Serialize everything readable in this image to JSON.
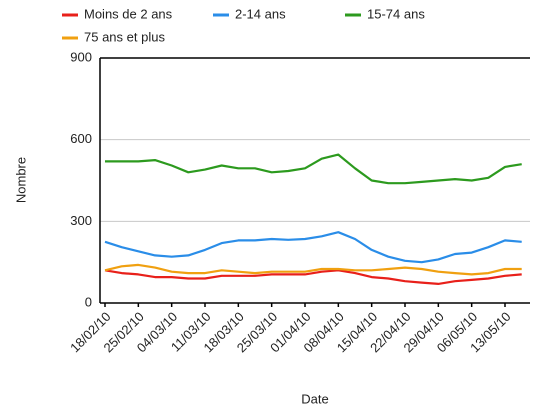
{
  "chart_data": {
    "type": "line",
    "x_label": "Date",
    "y_label": "Nombre",
    "categories": [
      "18/02/10",
      null,
      "25/02/10",
      null,
      "04/03/10",
      null,
      "11/03/10",
      null,
      "18/03/10",
      null,
      "25/03/10",
      null,
      "01/04/10",
      null,
      "08/04/10",
      null,
      "15/04/10",
      null,
      "22/04/10",
      null,
      "29/04/10",
      null,
      "06/05/10",
      null,
      "13/05/10",
      null
    ],
    "series": [
      {
        "name": "Moins de 2 ans",
        "color": "#e8201a",
        "values": [
          120,
          110,
          105,
          95,
          95,
          90,
          90,
          100,
          100,
          100,
          105,
          105,
          105,
          115,
          120,
          110,
          95,
          90,
          80,
          75,
          70,
          80,
          85,
          90,
          100,
          105
        ]
      },
      {
        "name": "2-14 ans",
        "color": "#2a8de8",
        "values": [
          225,
          205,
          190,
          175,
          170,
          175,
          195,
          220,
          230,
          230,
          235,
          232,
          235,
          245,
          260,
          235,
          195,
          170,
          155,
          150,
          160,
          180,
          185,
          205,
          230,
          225
        ]
      },
      {
        "name": "15-74 ans",
        "color": "#2c9a1e",
        "values": [
          520,
          520,
          520,
          525,
          505,
          480,
          490,
          505,
          495,
          495,
          480,
          485,
          495,
          530,
          545,
          495,
          450,
          440,
          440,
          445,
          450,
          455,
          450,
          460,
          500,
          510
        ]
      },
      {
        "name": "75 ans et plus",
        "color": "#f0a010",
        "values": [
          120,
          135,
          140,
          130,
          115,
          110,
          110,
          120,
          115,
          110,
          115,
          115,
          115,
          125,
          125,
          120,
          120,
          125,
          130,
          125,
          115,
          110,
          105,
          110,
          125,
          125
        ]
      }
    ],
    "ylim": [
      0,
      900
    ],
    "yticks": [
      0,
      300,
      600,
      900
    ],
    "grid": true
  }
}
